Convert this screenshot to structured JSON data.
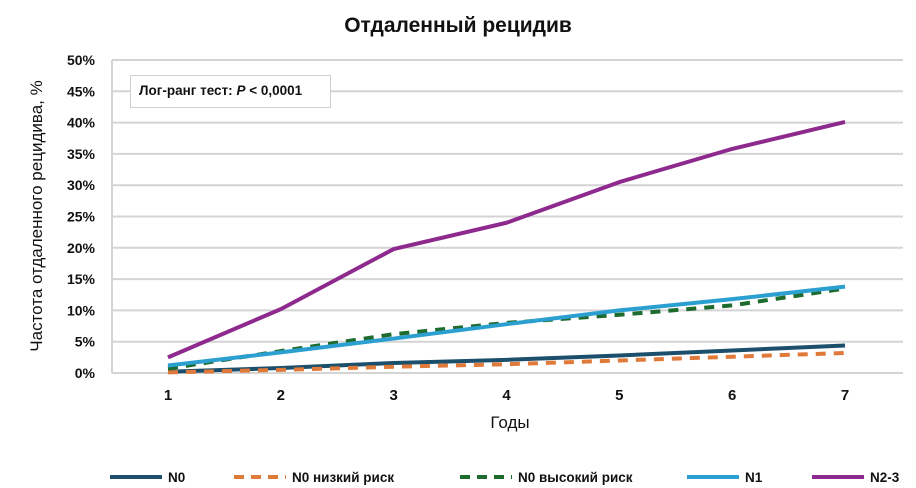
{
  "chart_data": {
    "type": "line",
    "title": "Отдаленный рецидив",
    "xlabel": "Годы",
    "ylabel": "Частота отдаленного рецидива, %",
    "x": [
      1,
      2,
      3,
      4,
      5,
      6,
      7
    ],
    "xlim": [
      1,
      7
    ],
    "ylim": [
      0,
      50
    ],
    "y_ticks": [
      "0%",
      "5%",
      "10%",
      "15%",
      "20%",
      "25%",
      "30%",
      "35%",
      "40%",
      "45%",
      "50%"
    ],
    "x_ticks": [
      "1",
      "2",
      "3",
      "4",
      "5",
      "6",
      "7"
    ],
    "grid": true,
    "legend_position": "bottom",
    "annotation": "Лог-ранг тест: P < 0,0001",
    "series": [
      {
        "name": "N0",
        "color": "#1b4f6b",
        "style": "solid",
        "values": [
          0.2,
          0.8,
          1.6,
          2.1,
          2.8,
          3.6,
          4.4
        ]
      },
      {
        "name": "N0 низкий риск",
        "color": "#e07a3a",
        "style": "dashed",
        "values": [
          0.1,
          0.5,
          1.0,
          1.4,
          2.0,
          2.6,
          3.2
        ]
      },
      {
        "name": "N0 высокий риск",
        "color": "#1e6b2e",
        "style": "dashed",
        "values": [
          0.7,
          3.5,
          6.2,
          8.0,
          9.3,
          10.8,
          13.5
        ]
      },
      {
        "name": "N1",
        "color": "#2a9fd0",
        "style": "solid",
        "values": [
          1.2,
          3.3,
          5.5,
          7.8,
          10.0,
          11.8,
          13.8
        ]
      },
      {
        "name": "N2-3",
        "color": "#8e2a8e",
        "style": "solid",
        "values": [
          2.5,
          10.2,
          19.8,
          24.0,
          30.5,
          35.8,
          40.1
        ]
      }
    ]
  },
  "annotation": {
    "prefix": "Лог-ранг тест: ",
    "p": "P",
    "suffix": " < 0,0001"
  }
}
